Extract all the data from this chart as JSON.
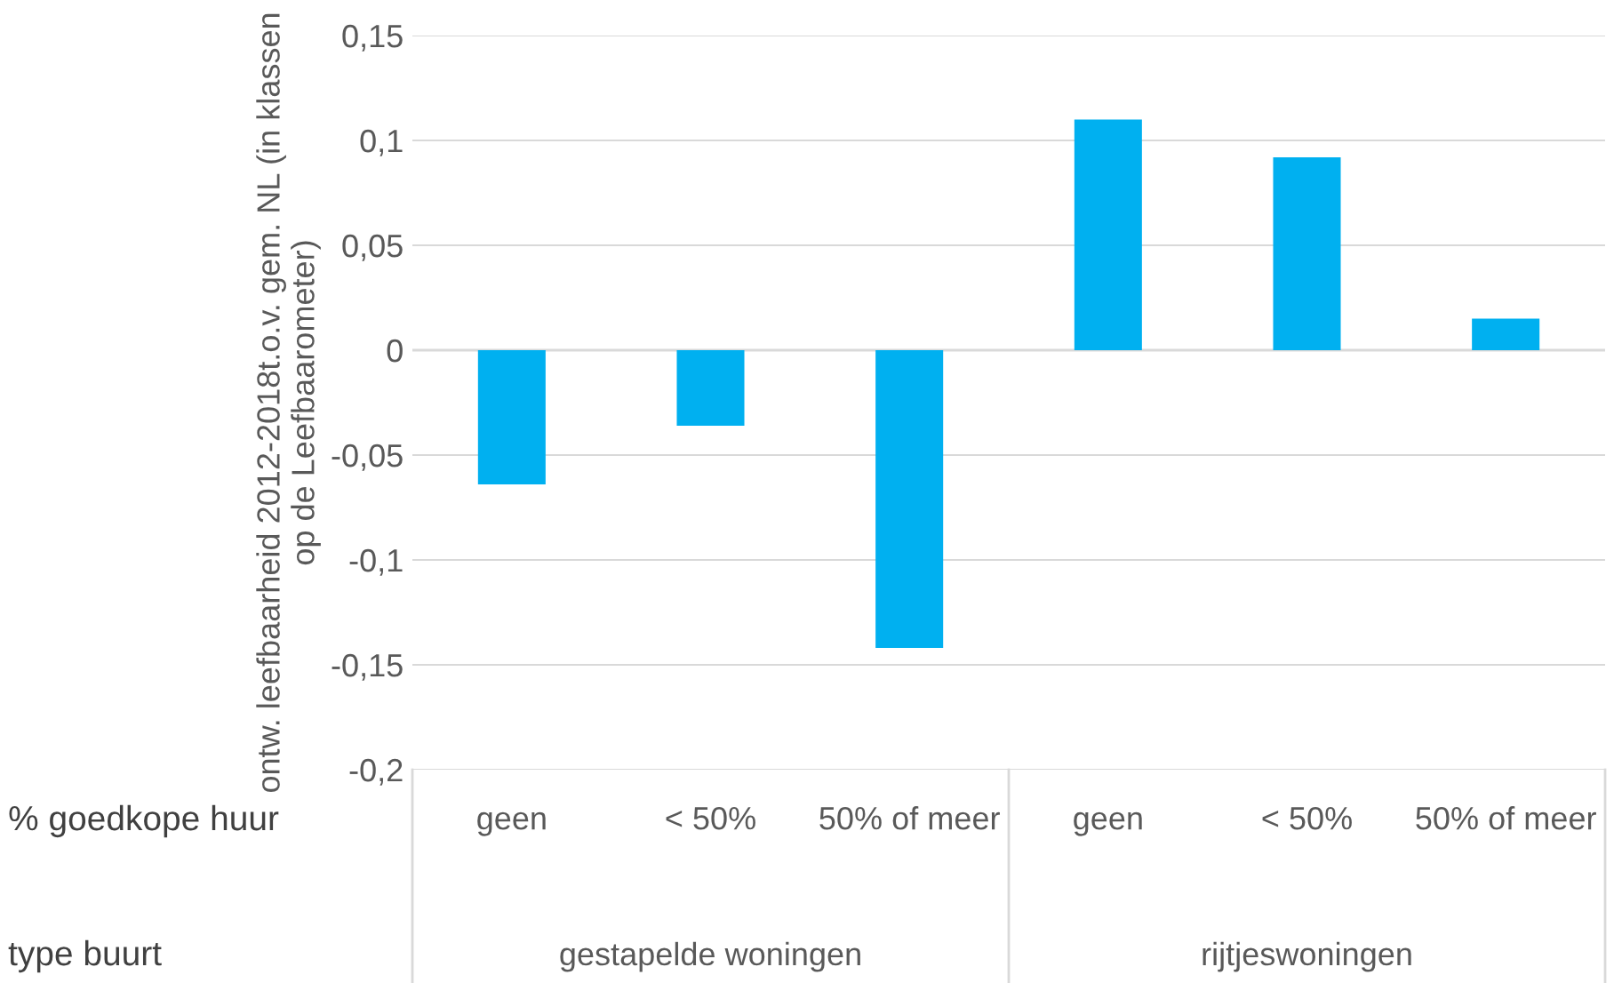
{
  "chart_data": {
    "type": "bar",
    "ylabel": "ontw. leefbaarheid 2012-2018t.o.v. gem. NL (in klassen op de Leefbaarometer)",
    "categories": [
      "geen",
      "< 50%",
      "50% of meer",
      "geen",
      "< 50%",
      "50% of meer"
    ],
    "values": [
      -0.064,
      -0.036,
      -0.142,
      0.11,
      0.092,
      0.015
    ],
    "color": "#00b0f0",
    "ylim": [
      -0.2,
      0.15
    ],
    "yticks": [
      {
        "value": -0.2,
        "label": "-0,2"
      },
      {
        "value": -0.15,
        "label": "-0,15"
      },
      {
        "value": -0.1,
        "label": "-0,1"
      },
      {
        "value": -0.05,
        "label": "-0,05"
      },
      {
        "value": 0,
        "label": "0"
      },
      {
        "value": 0.05,
        "label": "0,05"
      },
      {
        "value": 0.1,
        "label": "0,1"
      },
      {
        "value": 0.15,
        "label": "0,15"
      }
    ],
    "grid": "y",
    "annotations": [
      "% goedkope huur",
      "type buurt",
      "gestapelde woningen",
      "rijtjeswoningen"
    ]
  }
}
